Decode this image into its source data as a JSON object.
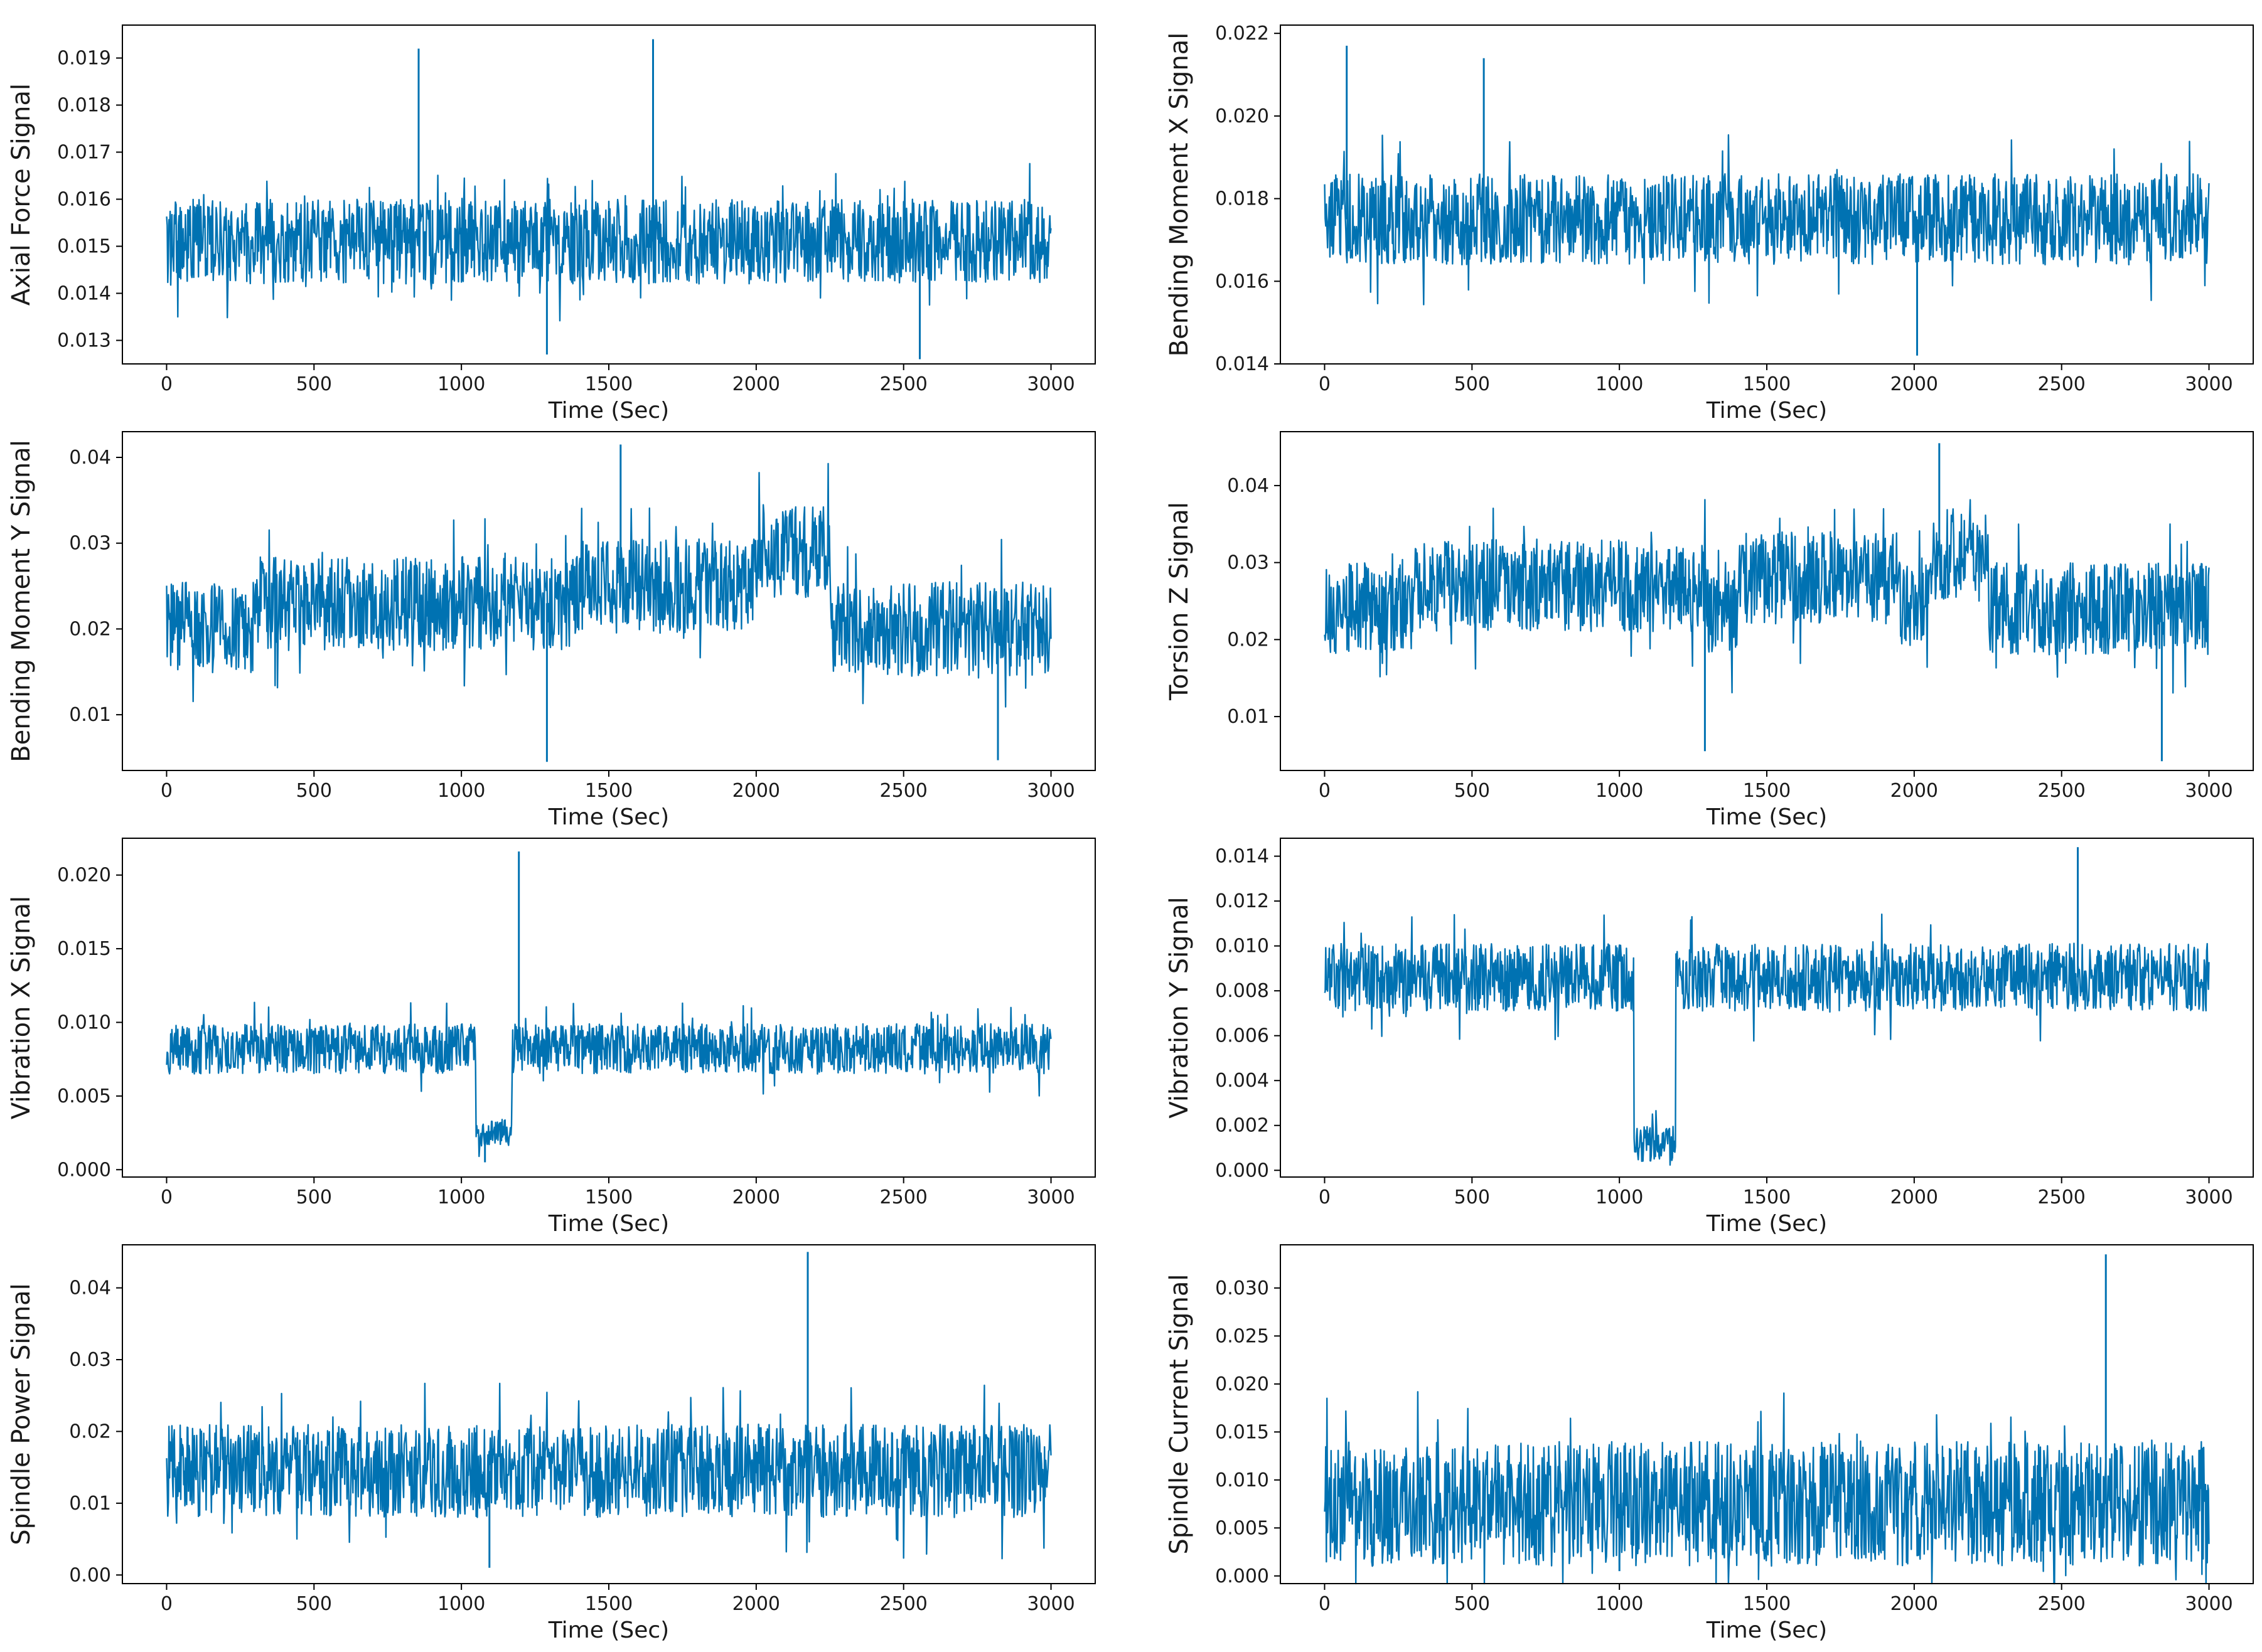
{
  "figure": {
    "line_color": "#0072b2",
    "axis_color": "#000000"
  },
  "chart_data": [
    {
      "type": "line",
      "ylabel": "Axial Force Signal",
      "xlabel": "Time (Sec)",
      "xlim": [
        -150,
        3150
      ],
      "xticks": [
        0,
        500,
        1000,
        1500,
        2000,
        2500,
        3000
      ],
      "ylim": [
        0.0125,
        0.0197
      ],
      "yticks": [
        0.013,
        0.014,
        0.015,
        0.016,
        0.017,
        0.018,
        0.019
      ],
      "ytick_labels": [
        "0.013",
        "0.014",
        "0.015",
        "0.016",
        "0.017",
        "0.018",
        "0.019"
      ],
      "x_range": [
        0,
        3000
      ],
      "base_level": 0.0151,
      "noise_amplitude": 0.0009,
      "segments": [],
      "spikes": [
        {
          "x": 855,
          "y": 0.0192
        },
        {
          "x": 1650,
          "y": 0.0194
        },
        {
          "x": 1290,
          "y": 0.0127
        },
        {
          "x": 2555,
          "y": 0.0126
        }
      ]
    },
    {
      "type": "line",
      "ylabel": "Bending Moment X Signal",
      "xlabel": "Time (Sec)",
      "xlim": [
        -150,
        3150
      ],
      "xticks": [
        0,
        500,
        1000,
        1500,
        2000,
        2500,
        3000
      ],
      "ylim": [
        0.014,
        0.0222
      ],
      "yticks": [
        0.014,
        0.016,
        0.018,
        0.02,
        0.022
      ],
      "ytick_labels": [
        "0.014",
        "0.016",
        "0.018",
        "0.020",
        "0.022"
      ],
      "x_range": [
        0,
        3000
      ],
      "base_level": 0.0175,
      "noise_amplitude": 0.0011,
      "segments": [],
      "spikes": [
        {
          "x": 75,
          "y": 0.0217
        },
        {
          "x": 540,
          "y": 0.0214
        },
        {
          "x": 2010,
          "y": 0.0142
        }
      ]
    },
    {
      "type": "line",
      "ylabel": "Bending Moment Y Signal",
      "xlabel": "Time (Sec)",
      "xlim": [
        -150,
        3150
      ],
      "xticks": [
        0,
        500,
        1000,
        1500,
        2000,
        2500,
        3000
      ],
      "ylim": [
        0.0035,
        0.043
      ],
      "yticks": [
        0.01,
        0.02,
        0.03,
        0.04
      ],
      "ytick_labels": [
        "0.01",
        "0.02",
        "0.03",
        "0.04"
      ],
      "x_range": [
        0,
        3000
      ],
      "base_level": 0.02,
      "noise_amplitude": 0.0055,
      "segments": [
        {
          "x0": 300,
          "x1": 1400,
          "level": 0.023
        },
        {
          "x0": 1400,
          "x1": 2000,
          "level": 0.025
        },
        {
          "x0": 2000,
          "x1": 2250,
          "level": 0.029
        }
      ],
      "spikes": [
        {
          "x": 1540,
          "y": 0.0415
        },
        {
          "x": 1290,
          "y": 0.0045
        },
        {
          "x": 2820,
          "y": 0.0047
        }
      ]
    },
    {
      "type": "line",
      "ylabel": "Torsion Z Signal",
      "xlabel": "Time (Sec)",
      "xlim": [
        -150,
        3150
      ],
      "xticks": [
        0,
        500,
        1000,
        1500,
        2000,
        2500,
        3000
      ],
      "ylim": [
        0.003,
        0.047
      ],
      "yticks": [
        0.01,
        0.02,
        0.03,
        0.04
      ],
      "ytick_labels": [
        "0.01",
        "0.02",
        "0.03",
        "0.04"
      ],
      "x_range": [
        0,
        3000
      ],
      "base_level": 0.024,
      "noise_amplitude": 0.006,
      "segments": [
        {
          "x0": 300,
          "x1": 1300,
          "level": 0.027
        },
        {
          "x0": 1400,
          "x1": 1950,
          "level": 0.028
        },
        {
          "x0": 2050,
          "x1": 2250,
          "level": 0.031
        }
      ],
      "spikes": [
        {
          "x": 2085,
          "y": 0.0455
        },
        {
          "x": 1290,
          "y": 0.0055
        },
        {
          "x": 2840,
          "y": 0.0042
        }
      ]
    },
    {
      "type": "line",
      "ylabel": "Vibration X Signal",
      "xlabel": "Time (Sec)",
      "xlim": [
        -150,
        3150
      ],
      "xticks": [
        0,
        500,
        1000,
        1500,
        2000,
        2500,
        3000
      ],
      "ylim": [
        -0.0005,
        0.0225
      ],
      "yticks": [
        0.0,
        0.005,
        0.01,
        0.015,
        0.02
      ],
      "ytick_labels": [
        "0.000",
        "0.005",
        "0.010",
        "0.015",
        "0.020"
      ],
      "x_range": [
        0,
        3000
      ],
      "base_level": 0.0082,
      "noise_amplitude": 0.0017,
      "segments": [
        {
          "x0": 1050,
          "x1": 1170,
          "level": 0.0025
        }
      ],
      "spikes": [
        {
          "x": 1195,
          "y": 0.0216
        },
        {
          "x": 1080,
          "y": 0.0005
        }
      ]
    },
    {
      "type": "line",
      "ylabel": "Vibration Y Signal",
      "xlabel": "Time (Sec)",
      "xlim": [
        -150,
        3150
      ],
      "xticks": [
        0,
        500,
        1000,
        1500,
        2000,
        2500,
        3000
      ],
      "ylim": [
        -0.0003,
        0.0148
      ],
      "yticks": [
        0.0,
        0.002,
        0.004,
        0.006,
        0.008,
        0.01,
        0.012,
        0.014
      ],
      "ytick_labels": [
        "0.000",
        "0.002",
        "0.004",
        "0.006",
        "0.008",
        "0.010",
        "0.012",
        "0.014"
      ],
      "x_range": [
        0,
        3000
      ],
      "base_level": 0.0086,
      "noise_amplitude": 0.0015,
      "segments": [
        {
          "x0": 1050,
          "x1": 1190,
          "level": 0.0012
        }
      ],
      "spikes": [
        {
          "x": 2555,
          "y": 0.0144
        },
        {
          "x": 1105,
          "y": 0.0004
        }
      ]
    },
    {
      "type": "line",
      "ylabel": "Spindle Power Signal",
      "xlabel": "Time (Sec)",
      "xlim": [
        -150,
        3150
      ],
      "xticks": [
        0,
        500,
        1000,
        1500,
        2000,
        2500,
        3000
      ],
      "ylim": [
        -0.0012,
        0.046
      ],
      "yticks": [
        0.0,
        0.01,
        0.02,
        0.03,
        0.04
      ],
      "ytick_labels": [
        "0.00",
        "0.01",
        "0.02",
        "0.03",
        "0.04"
      ],
      "x_range": [
        0,
        3000
      ],
      "base_level": 0.0145,
      "noise_amplitude": 0.0065,
      "segments": [],
      "spikes": [
        {
          "x": 2175,
          "y": 0.045
        },
        {
          "x": 1095,
          "y": 0.001
        }
      ]
    },
    {
      "type": "line",
      "ylabel": "Spindle Current Signal",
      "xlabel": "Time (Sec)",
      "xlim": [
        -150,
        3150
      ],
      "xticks": [
        0,
        500,
        1000,
        1500,
        2000,
        2500,
        3000
      ],
      "ylim": [
        -0.0008,
        0.0345
      ],
      "yticks": [
        0.0,
        0.005,
        0.01,
        0.015,
        0.02,
        0.025,
        0.03
      ],
      "ytick_labels": [
        "0.000",
        "0.005",
        "0.010",
        "0.015",
        "0.020",
        "0.025",
        "0.030"
      ],
      "x_range": [
        0,
        3000
      ],
      "base_level": 0.0075,
      "noise_amplitude": 0.0065,
      "segments": [],
      "spikes": [
        {
          "x": 2650,
          "y": 0.0335
        },
        {
          "x": 1000,
          "y": 0.0005
        }
      ]
    }
  ]
}
